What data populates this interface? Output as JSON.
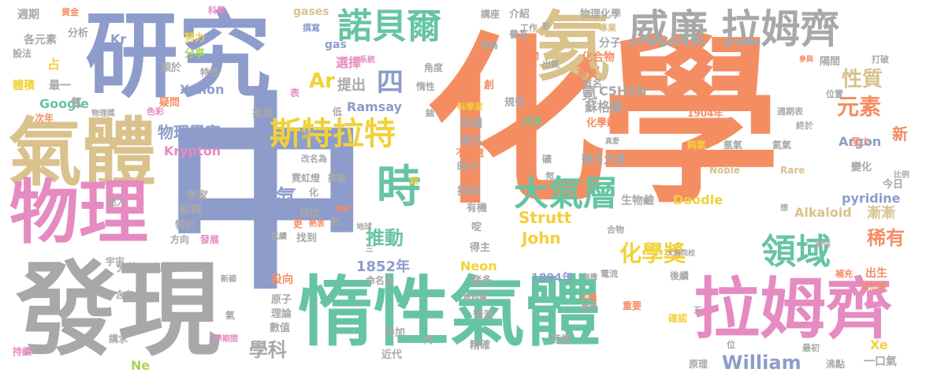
{
  "palette": {
    "orange": "#F58D63",
    "green": "#67C4A3",
    "blue": "#8D9CCB",
    "pink": "#E58BC1",
    "tan": "#D9C28C",
    "gray": "#A8A8A8",
    "lime": "#A5D65A",
    "yellow": "#F2D13A"
  },
  "words": [
    "化學",
    "中",
    "惰性氣體",
    "發現",
    "研究",
    "氣體",
    "物理",
    "拉姆齊",
    "氦",
    "威廉 拉姆齊",
    "諾貝爾",
    "斯特拉特",
    "時",
    "大氣層",
    "領域",
    "化學獎",
    "元素",
    "性質",
    "稀有",
    "推動",
    "William",
    "John",
    "Strutt",
    "1852年",
    "學科",
    "物理學家",
    "Ar",
    "提出",
    "四",
    "Krypton",
    "Ramsay",
    "Xenon",
    "Google",
    "氪",
    "氙",
    "Neon",
    "Ne",
    "Xe",
    "Argon",
    "Kr",
    "gases",
    "gas",
    "pyridine",
    "Alkaloid",
    "Doodle",
    "C5H5N",
    "Noble",
    "Rare",
    "1894年",
    "1904年",
    "週期",
    "資金",
    "科學",
    "各元素",
    "分析",
    "努力",
    "撰寫",
    "工作",
    "分享",
    "特性",
    "選擇",
    "講座",
    "介紹",
    "譽為",
    "物理化學",
    "專業",
    "分子",
    "化合物",
    "角度",
    "相關",
    "高貴",
    "蘇格蘭",
    "化學鍵",
    "有名",
    "創",
    "規律",
    "出氦",
    "稱為",
    "隔間",
    "打破",
    "參與",
    "改以",
    "位置",
    "週期表",
    "終於",
    "至少",
    "新",
    "變化",
    "今日",
    "比例",
    "漸漸",
    "出生",
    "自然界",
    "補充",
    "後續",
    "最初",
    "原理",
    "沸點",
    "一口氣",
    "少量",
    "教學",
    "陸續",
    "電流",
    "無機",
    "精確",
    "預測",
    "參加",
    "門",
    "近代",
    "諸多",
    "得主",
    "命名為",
    "投向",
    "數值",
    "原子",
    "理論",
    "推測",
    "改名為",
    "霓虹燈",
    "推斷",
    "不同處",
    "時代",
    "探測",
    "有機",
    "啶",
    "生物鹼",
    "合物",
    "聲名大噪",
    "英國",
    "聞名",
    "分支",
    "科學家",
    "鈾",
    "惰性",
    "類於",
    "最一",
    "疑問",
    "色彩",
    "物理獎",
    "次年",
    "占",
    "體積",
    "氬",
    "學家",
    "解釋",
    "特別",
    "方向",
    "發展",
    "找出",
    "找到",
    "鈣",
    "化",
    "更",
    "熱衷",
    "延續",
    "地球",
    "政府",
    "迷人",
    "宇宙",
    "分離",
    "反應性",
    "含有",
    "講求",
    "持續",
    "學期間",
    "新穎",
    "教科書",
    "鈍氣",
    "氬氣",
    "氦氣",
    "大專院校",
    "提供",
    "想",
    "位",
    "五",
    "低",
    "表",
    "世",
    "三",
    "彩",
    "真愛",
    "確認",
    "礦",
    "系統",
    "設法",
    "氣",
    "鈕",
    "重要",
    "氖"
  ]
}
